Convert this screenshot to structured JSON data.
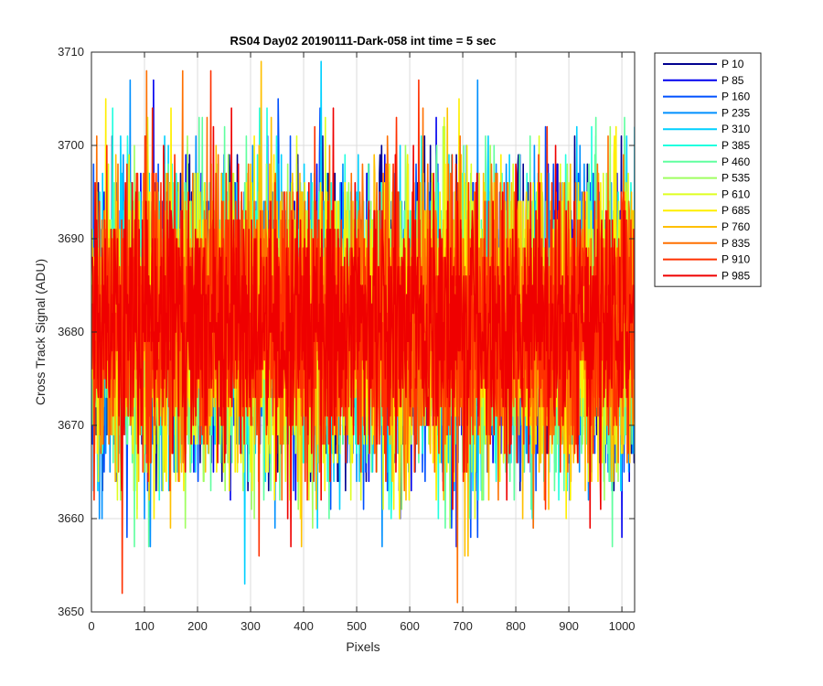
{
  "chart_data": {
    "type": "line",
    "title": "RS04 Day02 20190111-Dark-058 int time = 5 sec",
    "xlabel": "Pixels",
    "ylabel": "Cross Track Signal (ADU)",
    "xlim": [
      0,
      1024
    ],
    "ylim": [
      3650,
      3710
    ],
    "xticks": [
      0,
      100,
      200,
      300,
      400,
      500,
      600,
      700,
      800,
      900,
      1000
    ],
    "yticks": [
      3650,
      3660,
      3670,
      3680,
      3690,
      3700,
      3710
    ],
    "grid": true,
    "legend_position": "outside-top-right",
    "n_points_per_series": 1024,
    "series": [
      {
        "name": "P 10",
        "color": "#00008F",
        "mean": 3681,
        "std": 7.5,
        "min": 3663,
        "max": 3701
      },
      {
        "name": "P 85",
        "color": "#0000EF",
        "mean": 3681,
        "std": 7.5,
        "min": 3657,
        "max": 3707
      },
      {
        "name": "P 160",
        "color": "#0050FF",
        "mean": 3681,
        "std": 7.5,
        "min": 3658,
        "max": 3705
      },
      {
        "name": "P 235",
        "color": "#0090FF",
        "mean": 3681,
        "std": 7.5,
        "min": 3657,
        "max": 3707
      },
      {
        "name": "P 310",
        "color": "#00D0FF",
        "mean": 3681,
        "std": 7.5,
        "min": 3653,
        "max": 3709
      },
      {
        "name": "P 385",
        "color": "#20FFDF",
        "mean": 3681,
        "std": 7.5,
        "min": 3660,
        "max": 3704
      },
      {
        "name": "P 460",
        "color": "#60FF9F",
        "mean": 3681,
        "std": 7.5,
        "min": 3657,
        "max": 3703
      },
      {
        "name": "P 535",
        "color": "#9FFF60",
        "mean": 3681,
        "std": 7.5,
        "min": 3659,
        "max": 3702
      },
      {
        "name": "P 610",
        "color": "#DFFF20",
        "mean": 3681,
        "std": 7.5,
        "min": 3660,
        "max": 3703
      },
      {
        "name": "P 685",
        "color": "#FFEF00",
        "mean": 3681,
        "std": 7.5,
        "min": 3660,
        "max": 3705
      },
      {
        "name": "P 760",
        "color": "#FFC000",
        "mean": 3681,
        "std": 7.5,
        "min": 3656,
        "max": 3709
      },
      {
        "name": "P 835",
        "color": "#FF7000",
        "mean": 3681,
        "std": 7.5,
        "min": 3651,
        "max": 3708
      },
      {
        "name": "P 910",
        "color": "#FF3000",
        "mean": 3681,
        "std": 7.5,
        "min": 3652,
        "max": 3708
      },
      {
        "name": "P 985",
        "color": "#EF0000",
        "mean": 3681,
        "std": 7.0,
        "min": 3657,
        "max": 3704
      }
    ]
  }
}
